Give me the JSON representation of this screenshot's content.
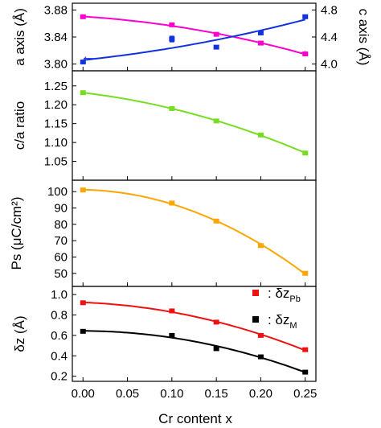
{
  "chart_data": [
    {
      "type": "scatter",
      "panel": "a-c-axis",
      "ylabel": "a axis (Å)",
      "y2label": "c axis (Å)",
      "x": [
        0.0,
        0.1,
        0.15,
        0.2,
        0.25
      ],
      "ylim": [
        3.79,
        3.89
      ],
      "y2lim": [
        3.9,
        4.9
      ],
      "yticks": [
        "3.80",
        "3.84",
        "3.88"
      ],
      "y2ticks": [
        "4.0",
        "4.4",
        "4.8"
      ],
      "series": [
        {
          "axis": "left",
          "color": "#ff00cc",
          "values": [
            3.87,
            3.858,
            3.844,
            3.831,
            3.815
          ],
          "errors": [
            0.001,
            0.001,
            0.001,
            0.001,
            0.001
          ]
        },
        {
          "axis": "right",
          "color": "#1133dd",
          "values": [
            4.03,
            4.37,
            4.25,
            4.46,
            4.7
          ],
          "errors": [
            0.01,
            0.04,
            0.02,
            0.01,
            0.01
          ]
        }
      ],
      "fit_curve_points": {
        "left": [
          [
            0.0,
            3.8705
          ],
          [
            0.05,
            3.8655
          ],
          [
            0.1,
            3.8585
          ],
          [
            0.15,
            3.8455
          ],
          [
            0.2,
            3.8305
          ],
          [
            0.25,
            3.8135
          ]
        ],
        "right": [
          [
            0.0,
            4.06
          ],
          [
            0.05,
            4.13
          ],
          [
            0.1,
            4.22
          ],
          [
            0.15,
            4.32
          ],
          [
            0.2,
            4.45
          ],
          [
            0.25,
            4.63
          ]
        ]
      },
      "arrows": [
        {
          "direction": "left",
          "color": "#1133dd",
          "label": "←"
        },
        {
          "direction": "right",
          "color": "#ff00cc",
          "label": "→"
        }
      ]
    },
    {
      "type": "scatter",
      "panel": "ca-ratio",
      "ylabel": "c/a ratio",
      "x": [
        0.0,
        0.1,
        0.15,
        0.2,
        0.25
      ],
      "ylim": [
        1.0,
        1.29
      ],
      "yticks": [
        "1.05",
        "1.10",
        "1.15",
        "1.20",
        "1.25"
      ],
      "series": [
        {
          "color": "#77dd22",
          "values": [
            1.232,
            1.19,
            1.157,
            1.12,
            1.072
          ]
        }
      ]
    },
    {
      "type": "scatter",
      "panel": "ps",
      "ylabel": "Ps (μC/cm²)",
      "x": [
        0.0,
        0.1,
        0.15,
        0.2,
        0.25
      ],
      "ylim": [
        42,
        107
      ],
      "yticks": [
        "50",
        "60",
        "70",
        "80",
        "90",
        "100"
      ],
      "series": [
        {
          "color": "#ffa500",
          "values": [
            101.0,
            93.0,
            82.0,
            67.0,
            50.0
          ]
        }
      ]
    },
    {
      "type": "scatter",
      "panel": "delta-z",
      "ylabel": "δz (Å)",
      "xlabel": "Cr content x",
      "x": [
        0.0,
        0.1,
        0.15,
        0.2,
        0.25
      ],
      "xticks": [
        "0.00",
        "0.05",
        "0.10",
        "0.15",
        "0.20",
        "0.25"
      ],
      "ylim": [
        0.15,
        1.08
      ],
      "yticks": [
        "0.2",
        "0.4",
        "0.6",
        "0.8",
        "1.0"
      ],
      "series": [
        {
          "name": "δzPb",
          "color": "#ee1111",
          "values": [
            0.92,
            0.84,
            0.73,
            0.6,
            0.46
          ]
        },
        {
          "name": "δzM",
          "color": "#000000",
          "values": [
            0.64,
            0.6,
            0.47,
            0.39,
            0.24
          ]
        }
      ],
      "legend": {
        "placement": "top-right",
        "entries": [
          {
            "prefix": ": δz",
            "sub": "Pb",
            "color": "#ee1111"
          },
          {
            "prefix": ": δz",
            "sub": "M",
            "color": "#000000"
          }
        ]
      }
    }
  ]
}
